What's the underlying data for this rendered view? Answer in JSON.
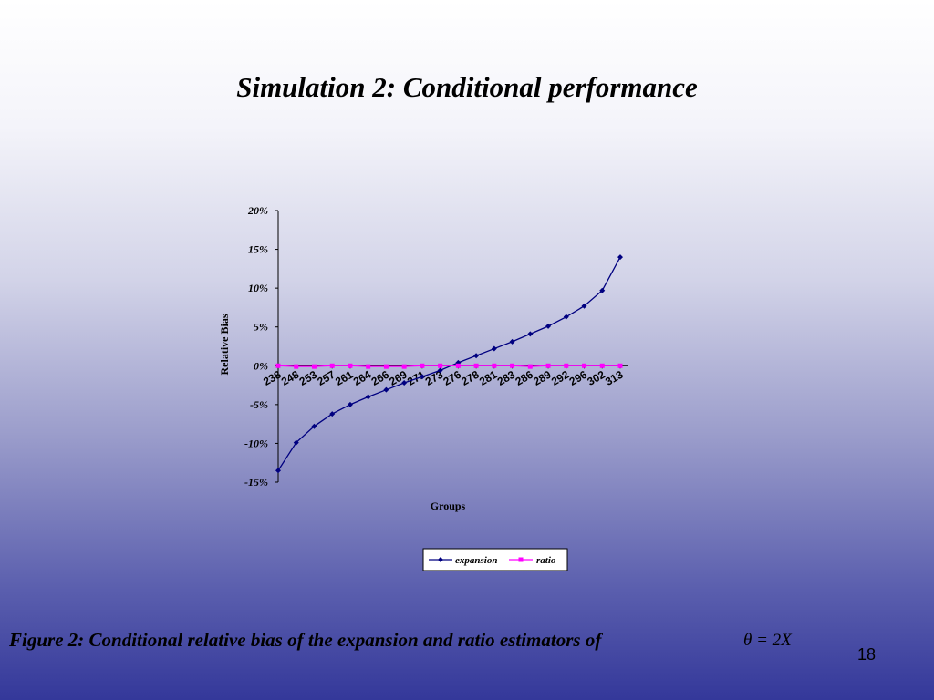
{
  "slide": {
    "title": "Simulation 2: Conditional performance",
    "caption": "Figure 2: Conditional relative bias of the expansion and ratio estimators of",
    "formula": "θ = 2X",
    "page_number": "18"
  },
  "chart_data": {
    "type": "line",
    "xlabel": "Groups",
    "ylabel": "Relative Bias",
    "ylim": [
      -0.15,
      0.2
    ],
    "yticks": [
      -0.15,
      -0.1,
      -0.05,
      0,
      0.05,
      0.1,
      0.15,
      0.2
    ],
    "ytick_labels": [
      "-15%",
      "-10%",
      "-5%",
      "0%",
      "5%",
      "10%",
      "15%",
      "20%"
    ],
    "categories": [
      "238",
      "248",
      "253",
      "257",
      "261",
      "264",
      "266",
      "269",
      "271",
      "273",
      "276",
      "278",
      "281",
      "283",
      "286",
      "289",
      "292",
      "296",
      "302",
      "313"
    ],
    "series": [
      {
        "name": "expansion",
        "color": "#000080",
        "marker": "diamond",
        "values": [
          -0.135,
          -0.099,
          -0.078,
          -0.062,
          -0.05,
          -0.04,
          -0.031,
          -0.022,
          -0.014,
          -0.006,
          0.004,
          0.013,
          0.022,
          0.031,
          0.041,
          0.051,
          0.063,
          0.077,
          0.097,
          0.14
        ]
      },
      {
        "name": "ratio",
        "color": "#ff00ff",
        "marker": "square",
        "values": [
          0.0,
          -0.001,
          -0.001,
          0.0,
          0.0,
          -0.001,
          -0.001,
          -0.001,
          0.0,
          0.0,
          0.0,
          0.0,
          0.0,
          0.0,
          -0.001,
          0.0,
          0.0,
          0.0,
          0.0,
          0.0
        ]
      }
    ],
    "legend_position": "bottom",
    "grid": false
  }
}
